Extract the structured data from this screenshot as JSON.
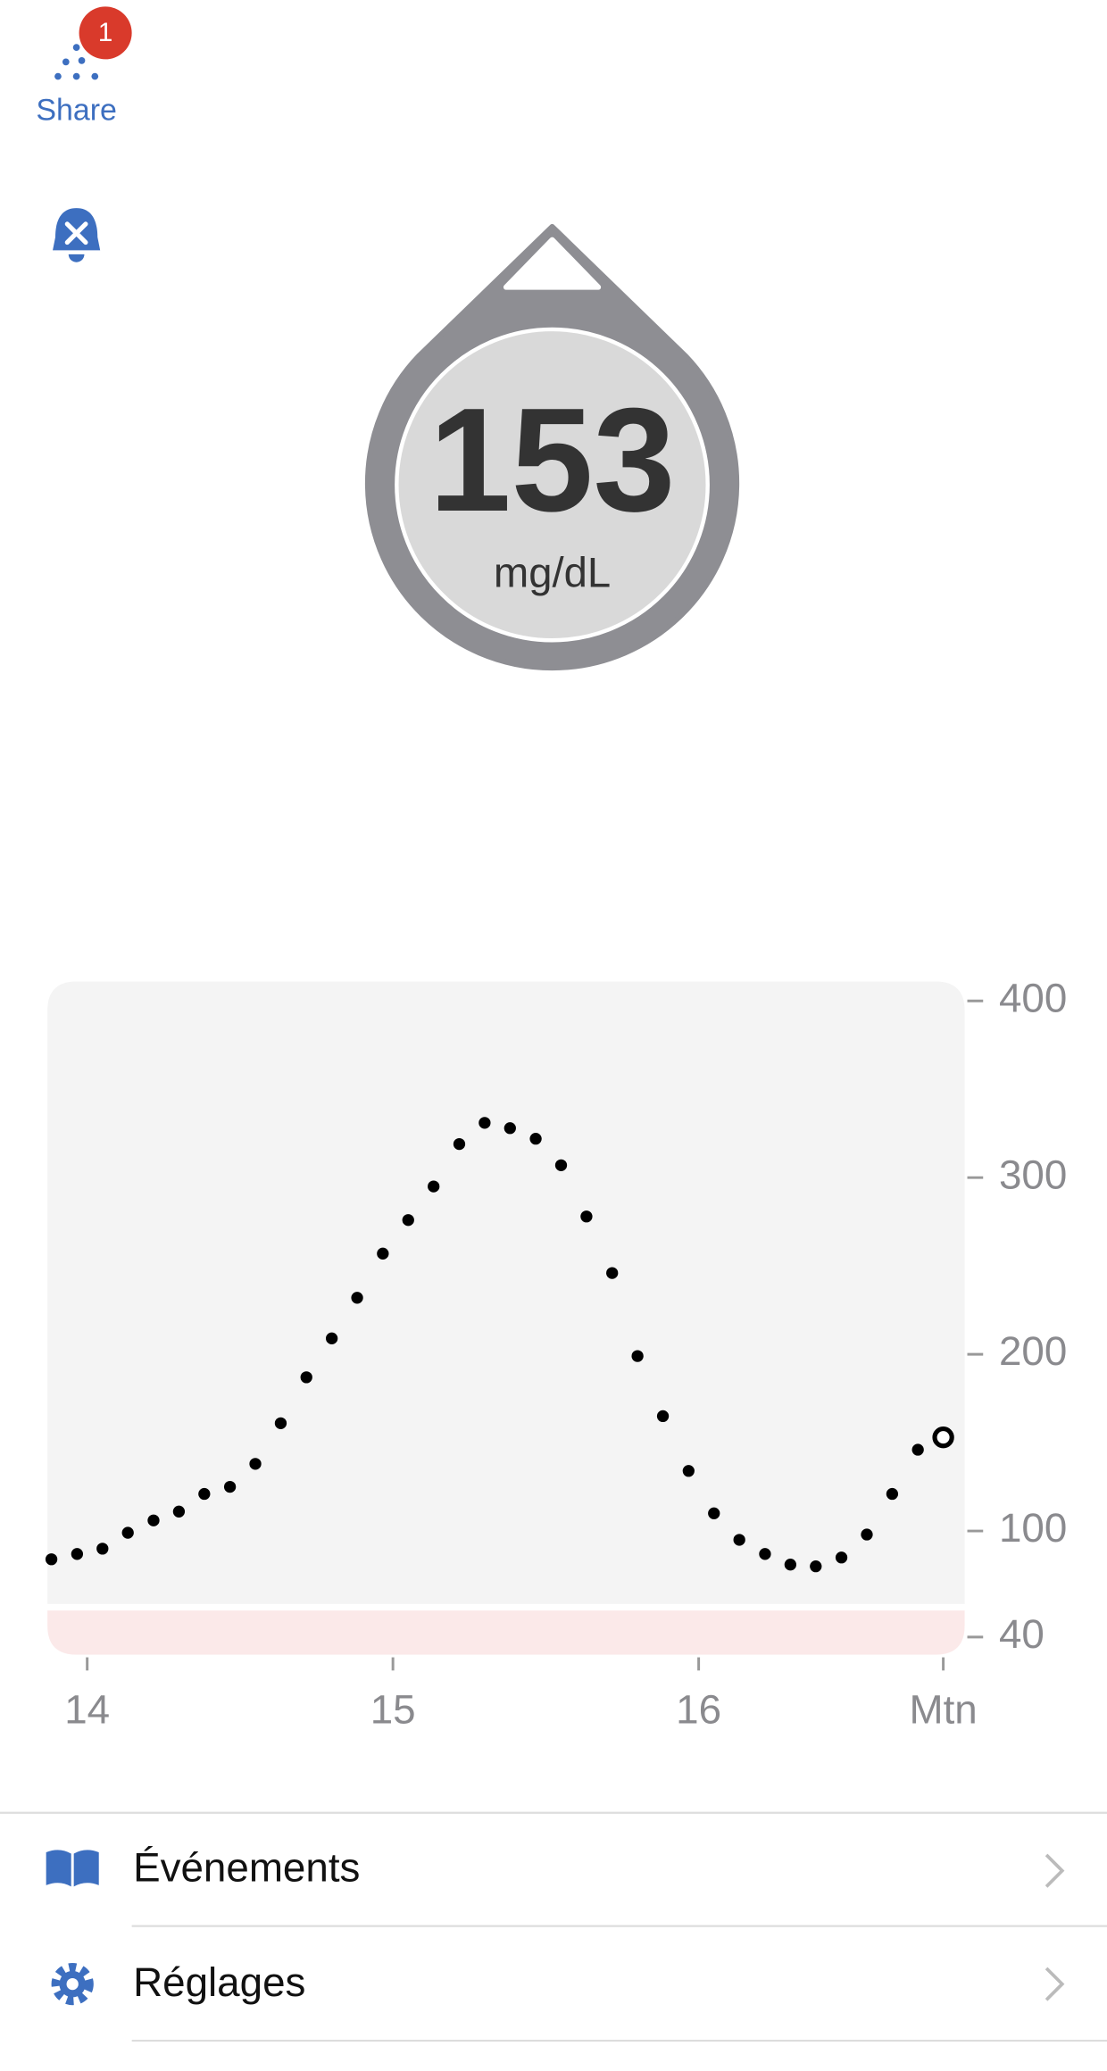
{
  "header": {
    "share_label": "Share",
    "badge": 1
  },
  "reading": {
    "value": 153,
    "unit": "mg/dL"
  },
  "chart_data": {
    "type": "scatter",
    "x": [
      13.883,
      13.967,
      14.05,
      14.133,
      14.217,
      14.3,
      14.383,
      14.467,
      14.55,
      14.633,
      14.717,
      14.8,
      14.883,
      14.967,
      15.05,
      15.133,
      15.217,
      15.3,
      15.383,
      15.467,
      15.55,
      15.633,
      15.717,
      15.8,
      15.883,
      15.967,
      16.05,
      16.133,
      16.217,
      16.3,
      16.383,
      16.467,
      16.55,
      16.633,
      16.717,
      16.8
    ],
    "values": [
      84,
      87,
      90,
      99,
      106,
      111,
      121,
      125,
      138,
      161,
      187,
      209,
      232,
      257,
      276,
      295,
      319,
      331,
      328,
      322,
      307,
      278,
      246,
      199,
      165,
      134,
      110,
      95,
      87,
      81,
      80,
      85,
      98,
      121,
      146,
      153
    ],
    "color": "#000000",
    "xlim": [
      13.87,
      16.87
    ],
    "ylim": [
      30,
      411
    ],
    "xticks": [
      14,
      15,
      16,
      {
        "value": 16.8,
        "label": "Mtn"
      }
    ],
    "yticks": [
      40,
      100,
      200,
      300,
      400
    ],
    "low_band": [
      30,
      55
    ]
  },
  "menu": [
    "Événements",
    "Réglages"
  ]
}
